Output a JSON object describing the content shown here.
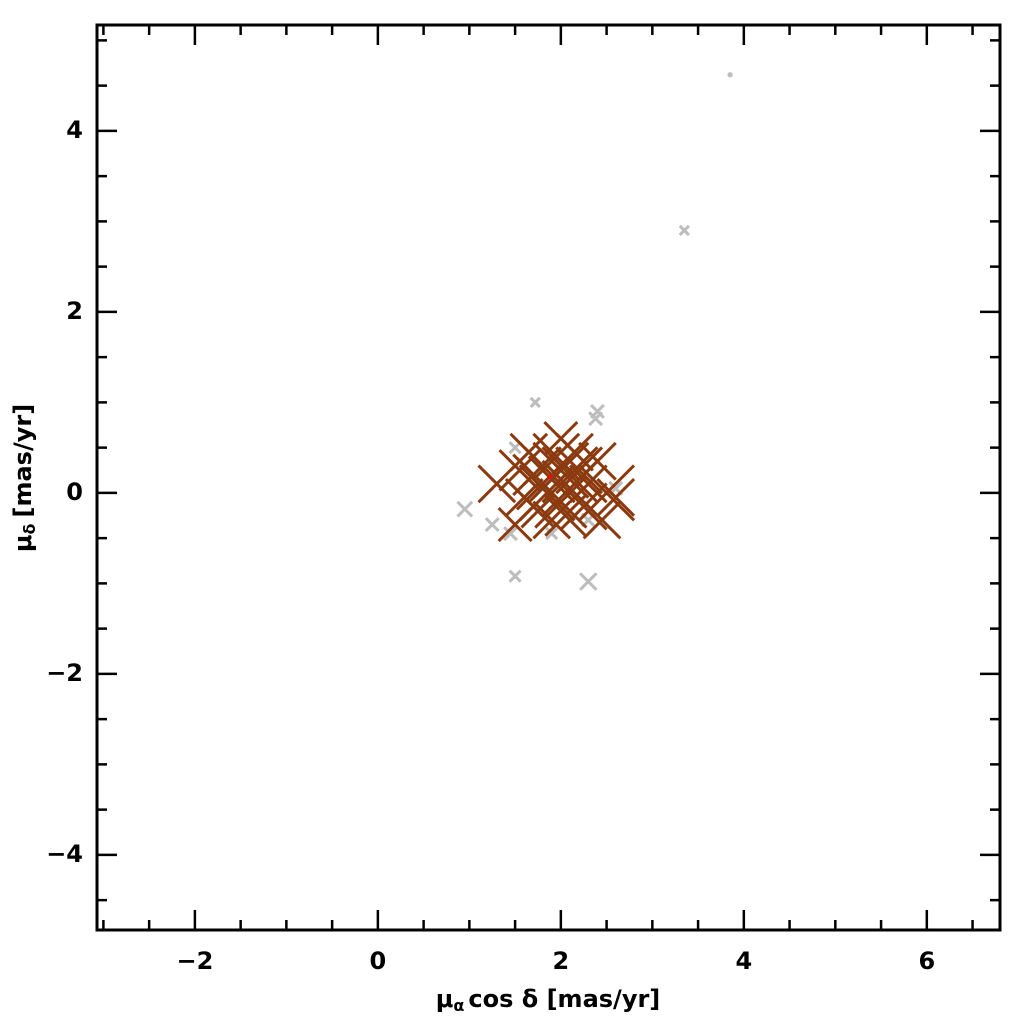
{
  "chart_data": {
    "type": "scatter",
    "x_label": {
      "symbol": "μ",
      "sub": "α",
      "text": "cos δ [mas/yr]"
    },
    "y_label": {
      "symbol": "μ",
      "sub": "δ",
      "text": "[mas/yr]"
    },
    "xlim": [
      -3.07,
      6.8
    ],
    "ylim": [
      -4.83,
      5.17
    ],
    "xticks": [
      {
        "value": -2,
        "label": "−2"
      },
      0,
      2,
      4,
      6
    ],
    "yticks": [
      {
        "value": -4,
        "label": "−4"
      },
      {
        "value": -2,
        "label": "−2"
      },
      0,
      2,
      4
    ],
    "xminorticks": [
      -3,
      -2.5,
      -1.5,
      -1,
      -0.5,
      0.5,
      1,
      1.5,
      2.5,
      3,
      3.5,
      4.5,
      5,
      5.5,
      6.5
    ],
    "yminorticks": [
      -4.5,
      -3.5,
      -3,
      -2.5,
      -1.5,
      -1,
      -0.5,
      0.5,
      1,
      1.5,
      2.5,
      3,
      3.5,
      4.5,
      5
    ],
    "series": [
      {
        "color": "#bdbdbd",
        "marker": "cross",
        "x": [
          3.85,
          3.35,
          0.95,
          1.25,
          1.5,
          2.3,
          2.4,
          2.38,
          1.72,
          1.45,
          2.6,
          1.5,
          2.3,
          1.9
        ],
        "values": [
          4.62,
          2.9,
          -0.18,
          -0.35,
          -0.92,
          -0.98,
          0.9,
          0.82,
          1.0,
          -0.45,
          0.05,
          0.5,
          -0.3,
          -0.45
        ],
        "sizes": [
          0.02,
          0.05,
          0.08,
          0.07,
          0.06,
          0.09,
          0.07,
          0.07,
          0.05,
          0.07,
          0.07,
          0.06,
          0.07,
          0.06
        ]
      },
      {
        "color": "#8b3a0f",
        "marker": "cross",
        "x": [
          1.9,
          2.1,
          1.7,
          2.0,
          1.8,
          2.2,
          1.6,
          2.3,
          1.95,
          2.05,
          1.75,
          2.15,
          1.85,
          2.5,
          2.45,
          1.5,
          1.3,
          2.0,
          2.4,
          1.65,
          2.25,
          1.55,
          2.6,
          1.9,
          2.1,
          1.8,
          2.0
        ],
        "values": [
          0.15,
          0.05,
          0.2,
          -0.1,
          0.3,
          0.25,
          -0.05,
          0.1,
          0.4,
          -0.25,
          -0.2,
          0.45,
          0.0,
          0.0,
          -0.3,
          -0.35,
          0.1,
          0.6,
          0.35,
          0.45,
          -0.15,
          0.25,
          -0.05,
          -0.3,
          0.2,
          0.1,
          0.25
        ],
        "sizes": [
          0.25,
          0.3,
          0.22,
          0.28,
          0.2,
          0.25,
          0.2,
          0.2,
          0.25,
          0.22,
          0.18,
          0.2,
          0.3,
          0.3,
          0.2,
          0.18,
          0.2,
          0.18,
          0.2,
          0.2,
          0.25,
          0.22,
          0.2,
          0.2,
          0.3,
          0.28,
          0.3
        ]
      },
      {
        "color": "#ff0000",
        "marker": "dot",
        "x": [
          1.88
        ],
        "values": [
          0.18
        ],
        "sizes": [
          0.02
        ]
      }
    ]
  }
}
